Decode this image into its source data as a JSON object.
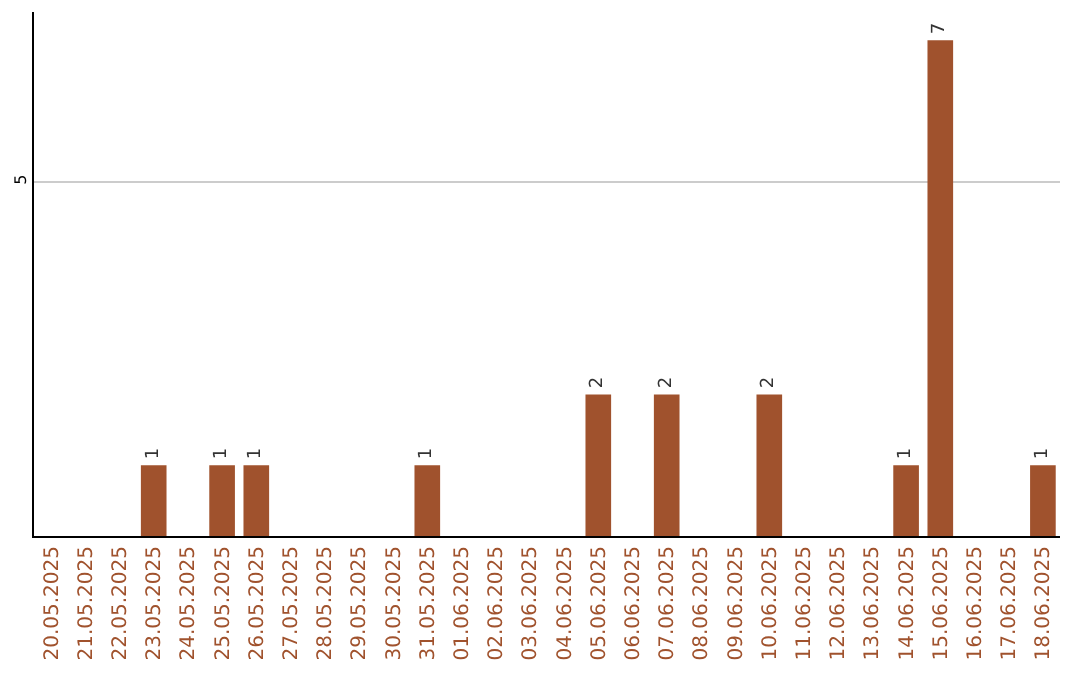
{
  "chart_data": {
    "type": "bar",
    "categories": [
      "20.05.2025",
      "21.05.2025",
      "22.05.2025",
      "23.05.2025",
      "24.05.2025",
      "25.05.2025",
      "26.05.2025",
      "27.05.2025",
      "28.05.2025",
      "29.05.2025",
      "30.05.2025",
      "31.05.2025",
      "01.06.2025",
      "02.06.2025",
      "03.06.2025",
      "04.06.2025",
      "05.06.2025",
      "06.06.2025",
      "07.06.2025",
      "08.06.2025",
      "09.06.2025",
      "10.06.2025",
      "11.06.2025",
      "12.06.2025",
      "13.06.2025",
      "14.06.2025",
      "15.06.2025",
      "16.06.2025",
      "17.06.2025",
      "18.06.2025"
    ],
    "values": [
      0,
      0,
      0,
      1,
      0,
      1,
      1,
      0,
      0,
      0,
      0,
      1,
      0,
      0,
      0,
      0,
      2,
      0,
      2,
      0,
      0,
      2,
      0,
      0,
      0,
      1,
      7,
      0,
      0,
      1
    ],
    "value_labels": [
      null,
      null,
      null,
      "1",
      null,
      "1",
      "1",
      null,
      null,
      null,
      null,
      "1",
      null,
      null,
      null,
      null,
      "2",
      null,
      "2",
      null,
      null,
      "2",
      null,
      null,
      null,
      "1",
      "7",
      null,
      null,
      "1"
    ],
    "color": "#a0522d",
    "ylim": [
      0,
      7.4
    ],
    "yticks": [
      5
    ],
    "grid": "y"
  }
}
